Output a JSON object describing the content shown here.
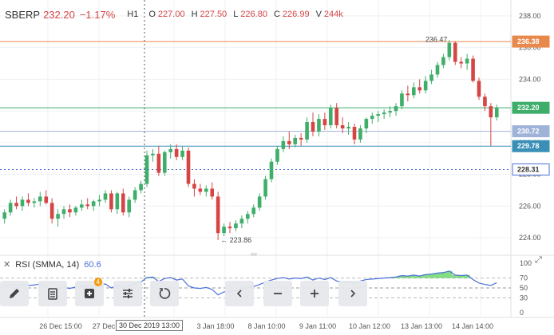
{
  "header": {
    "symbol": "SBERP",
    "price": "232.20",
    "change": "−1.17%",
    "timeframe": "H1",
    "open_label": "O",
    "open": "227.00",
    "high_label": "H",
    "high": "227.50",
    "low_label": "L",
    "low": "226.80",
    "close_label": "C",
    "close": "226.99",
    "volume_label": "V",
    "volume": "244k"
  },
  "price_axis": {
    "ticks": [
      "238.00",
      "236.00",
      "234.00",
      "232.00",
      "230.00",
      "228.00",
      "226.00",
      "224.00"
    ],
    "markers": {
      "high_line": {
        "label": "236.38",
        "color": "#e8884a"
      },
      "last": {
        "label": "232.20",
        "color": "#3fae6a"
      },
      "level_a": {
        "label": "230.72",
        "color": "#9fb3d8"
      },
      "level_b": {
        "label": "229.78",
        "color": "#3a8fb7"
      },
      "dotted": {
        "label": "228.31",
        "color": "#4a6fd8"
      }
    }
  },
  "annotations": {
    "high": "236.47",
    "low": "← 223.86"
  },
  "rsi": {
    "label": "RSI (SMMA, 14)",
    "value": "60.6",
    "ticks": [
      "100",
      "70",
      "50",
      "30",
      "0"
    ]
  },
  "toolbar": {
    "buttons": [
      {
        "name": "draw-pencil-icon"
      },
      {
        "name": "orders-list-icon"
      },
      {
        "name": "add-indicator-icon",
        "badge": "4"
      },
      {
        "name": "settings-sliders-icon"
      },
      {
        "name": "reset-rotate-icon"
      },
      {
        "name": "scroll-left-icon"
      },
      {
        "name": "zoom-out-icon"
      },
      {
        "name": "zoom-in-icon"
      },
      {
        "name": "scroll-right-icon"
      }
    ]
  },
  "time_axis": {
    "ticks": [
      "26 Dec 15:00",
      "27 Dec",
      "20",
      "3 Jan 18:00",
      "8 Jan 10:00",
      "9 Jan 11:00",
      "10 Jan 12:00",
      "13 Jan 13:00",
      "14 Jan 14:00"
    ],
    "cursor_label": "30 Dec 2019 13:00"
  },
  "colors": {
    "up": "#3fae6a",
    "down": "#d64545",
    "rsi_line": "#4a6fd8",
    "rsi_fill": "#6fd66f"
  },
  "chart_data": {
    "type": "candlestick",
    "price_range": [
      223.3,
      238.6
    ],
    "candles": [
      {
        "o": 225.2,
        "h": 225.8,
        "l": 224.9,
        "c": 225.6
      },
      {
        "o": 225.6,
        "h": 226.4,
        "l": 225.4,
        "c": 226.2
      },
      {
        "o": 226.2,
        "h": 226.6,
        "l": 225.8,
        "c": 226.0
      },
      {
        "o": 226.0,
        "h": 226.6,
        "l": 225.7,
        "c": 226.4
      },
      {
        "o": 226.4,
        "h": 226.8,
        "l": 226.0,
        "c": 226.2
      },
      {
        "o": 226.2,
        "h": 226.5,
        "l": 225.9,
        "c": 226.3
      },
      {
        "o": 226.3,
        "h": 226.9,
        "l": 226.0,
        "c": 226.6
      },
      {
        "o": 226.6,
        "h": 227.0,
        "l": 226.1,
        "c": 226.2
      },
      {
        "o": 226.2,
        "h": 226.5,
        "l": 224.9,
        "c": 225.2
      },
      {
        "o": 225.2,
        "h": 225.8,
        "l": 224.7,
        "c": 225.5
      },
      {
        "o": 225.5,
        "h": 226.0,
        "l": 225.2,
        "c": 225.8
      },
      {
        "o": 225.8,
        "h": 226.1,
        "l": 225.3,
        "c": 225.6
      },
      {
        "o": 225.6,
        "h": 226.0,
        "l": 225.4,
        "c": 225.9
      },
      {
        "o": 225.9,
        "h": 226.4,
        "l": 225.7,
        "c": 226.1
      },
      {
        "o": 226.1,
        "h": 226.5,
        "l": 225.8,
        "c": 226.0
      },
      {
        "o": 226.0,
        "h": 226.4,
        "l": 225.7,
        "c": 226.3
      },
      {
        "o": 226.3,
        "h": 226.7,
        "l": 226.0,
        "c": 226.4
      },
      {
        "o": 226.4,
        "h": 227.0,
        "l": 226.2,
        "c": 226.8
      },
      {
        "o": 226.8,
        "h": 227.0,
        "l": 225.6,
        "c": 225.8
      },
      {
        "o": 225.8,
        "h": 226.9,
        "l": 225.5,
        "c": 226.8
      },
      {
        "o": 226.8,
        "h": 227.1,
        "l": 225.4,
        "c": 225.6
      },
      {
        "o": 225.6,
        "h": 226.6,
        "l": 225.3,
        "c": 226.4
      },
      {
        "o": 226.4,
        "h": 227.2,
        "l": 226.2,
        "c": 227.0
      },
      {
        "o": 227.0,
        "h": 227.6,
        "l": 226.8,
        "c": 227.4
      },
      {
        "o": 227.4,
        "h": 229.5,
        "l": 227.2,
        "c": 229.2
      },
      {
        "o": 229.2,
        "h": 229.6,
        "l": 228.8,
        "c": 229.3
      },
      {
        "o": 229.3,
        "h": 229.8,
        "l": 227.9,
        "c": 228.1
      },
      {
        "o": 228.1,
        "h": 229.5,
        "l": 227.9,
        "c": 229.4
      },
      {
        "o": 229.4,
        "h": 229.9,
        "l": 229.0,
        "c": 229.6
      },
      {
        "o": 229.6,
        "h": 229.9,
        "l": 228.9,
        "c": 229.1
      },
      {
        "o": 229.1,
        "h": 229.8,
        "l": 228.9,
        "c": 229.5
      },
      {
        "o": 229.5,
        "h": 229.7,
        "l": 227.2,
        "c": 227.4
      },
      {
        "o": 227.4,
        "h": 227.7,
        "l": 226.6,
        "c": 227.1
      },
      {
        "o": 227.1,
        "h": 227.4,
        "l": 226.7,
        "c": 226.9
      },
      {
        "o": 226.9,
        "h": 227.3,
        "l": 226.6,
        "c": 227.1
      },
      {
        "o": 227.1,
        "h": 227.5,
        "l": 226.4,
        "c": 226.6
      },
      {
        "o": 226.6,
        "h": 226.9,
        "l": 223.86,
        "c": 224.3
      },
      {
        "o": 224.3,
        "h": 224.9,
        "l": 224.1,
        "c": 224.7
      },
      {
        "o": 224.7,
        "h": 225.0,
        "l": 224.3,
        "c": 224.6
      },
      {
        "o": 224.6,
        "h": 225.1,
        "l": 224.4,
        "c": 224.9
      },
      {
        "o": 224.9,
        "h": 225.4,
        "l": 224.6,
        "c": 225.2
      },
      {
        "o": 225.2,
        "h": 225.7,
        "l": 224.9,
        "c": 225.5
      },
      {
        "o": 225.5,
        "h": 226.1,
        "l": 225.3,
        "c": 225.9
      },
      {
        "o": 225.9,
        "h": 226.8,
        "l": 225.7,
        "c": 226.6
      },
      {
        "o": 226.6,
        "h": 227.9,
        "l": 226.4,
        "c": 227.7
      },
      {
        "o": 227.7,
        "h": 229.0,
        "l": 227.5,
        "c": 228.8
      },
      {
        "o": 228.8,
        "h": 229.8,
        "l": 228.6,
        "c": 229.6
      },
      {
        "o": 229.6,
        "h": 230.4,
        "l": 229.4,
        "c": 230.1
      },
      {
        "o": 230.1,
        "h": 230.7,
        "l": 229.6,
        "c": 229.9
      },
      {
        "o": 229.9,
        "h": 230.5,
        "l": 229.7,
        "c": 230.3
      },
      {
        "o": 230.3,
        "h": 230.6,
        "l": 229.8,
        "c": 230.2
      },
      {
        "o": 230.2,
        "h": 231.6,
        "l": 230.0,
        "c": 231.3
      },
      {
        "o": 231.3,
        "h": 231.9,
        "l": 230.4,
        "c": 230.7
      },
      {
        "o": 230.7,
        "h": 231.8,
        "l": 230.4,
        "c": 231.5
      },
      {
        "o": 231.5,
        "h": 231.9,
        "l": 230.8,
        "c": 231.1
      },
      {
        "o": 231.1,
        "h": 232.4,
        "l": 230.9,
        "c": 232.2
      },
      {
        "o": 232.2,
        "h": 232.5,
        "l": 230.9,
        "c": 231.1
      },
      {
        "o": 231.1,
        "h": 231.6,
        "l": 230.6,
        "c": 230.9
      },
      {
        "o": 230.9,
        "h": 231.3,
        "l": 230.5,
        "c": 231.0
      },
      {
        "o": 231.0,
        "h": 231.2,
        "l": 229.9,
        "c": 230.2
      },
      {
        "o": 230.2,
        "h": 231.1,
        "l": 230.0,
        "c": 230.9
      },
      {
        "o": 230.9,
        "h": 231.6,
        "l": 230.6,
        "c": 231.5
      },
      {
        "o": 231.5,
        "h": 231.9,
        "l": 231.2,
        "c": 231.7
      },
      {
        "o": 231.7,
        "h": 232.0,
        "l": 231.3,
        "c": 231.8
      },
      {
        "o": 231.8,
        "h": 232.1,
        "l": 231.5,
        "c": 231.9
      },
      {
        "o": 231.9,
        "h": 232.3,
        "l": 231.6,
        "c": 232.0
      },
      {
        "o": 232.0,
        "h": 232.5,
        "l": 231.7,
        "c": 232.3
      },
      {
        "o": 232.3,
        "h": 233.3,
        "l": 232.1,
        "c": 233.1
      },
      {
        "o": 233.1,
        "h": 233.6,
        "l": 232.6,
        "c": 233.0
      },
      {
        "o": 233.0,
        "h": 233.8,
        "l": 232.8,
        "c": 233.5
      },
      {
        "o": 233.5,
        "h": 234.0,
        "l": 233.1,
        "c": 233.3
      },
      {
        "o": 233.3,
        "h": 234.2,
        "l": 233.1,
        "c": 233.9
      },
      {
        "o": 233.9,
        "h": 234.6,
        "l": 233.7,
        "c": 234.3
      },
      {
        "o": 234.3,
        "h": 235.1,
        "l": 234.1,
        "c": 234.9
      },
      {
        "o": 234.9,
        "h": 235.6,
        "l": 234.7,
        "c": 235.4
      },
      {
        "o": 235.4,
        "h": 236.47,
        "l": 235.2,
        "c": 236.3
      },
      {
        "o": 236.3,
        "h": 236.4,
        "l": 234.9,
        "c": 235.1
      },
      {
        "o": 235.1,
        "h": 235.4,
        "l": 234.7,
        "c": 235.0
      },
      {
        "o": 235.0,
        "h": 235.6,
        "l": 234.6,
        "c": 235.3
      },
      {
        "o": 235.3,
        "h": 235.5,
        "l": 233.8,
        "c": 233.9
      },
      {
        "o": 233.9,
        "h": 234.1,
        "l": 232.7,
        "c": 232.9
      },
      {
        "o": 232.9,
        "h": 233.1,
        "l": 232.0,
        "c": 232.3
      },
      {
        "o": 232.3,
        "h": 232.5,
        "l": 229.8,
        "c": 231.6
      },
      {
        "o": 231.6,
        "h": 232.4,
        "l": 231.4,
        "c": 232.2
      }
    ],
    "rsi": [
      55,
      56,
      54,
      57,
      55,
      56,
      58,
      52,
      45,
      48,
      51,
      49,
      52,
      54,
      53,
      55,
      56,
      58,
      50,
      56,
      49,
      55,
      59,
      62,
      71,
      72,
      63,
      69,
      71,
      66,
      68,
      54,
      50,
      49,
      51,
      47,
      36,
      42,
      43,
      45,
      47,
      50,
      53,
      57,
      62,
      66,
      69,
      71,
      68,
      70,
      69,
      72,
      66,
      70,
      67,
      71,
      64,
      62,
      63,
      59,
      64,
      67,
      68,
      69,
      70,
      71,
      72,
      75,
      74,
      76,
      74,
      77,
      78,
      80,
      81,
      84,
      76,
      75,
      76,
      67,
      60,
      57,
      55,
      60.6
    ]
  }
}
